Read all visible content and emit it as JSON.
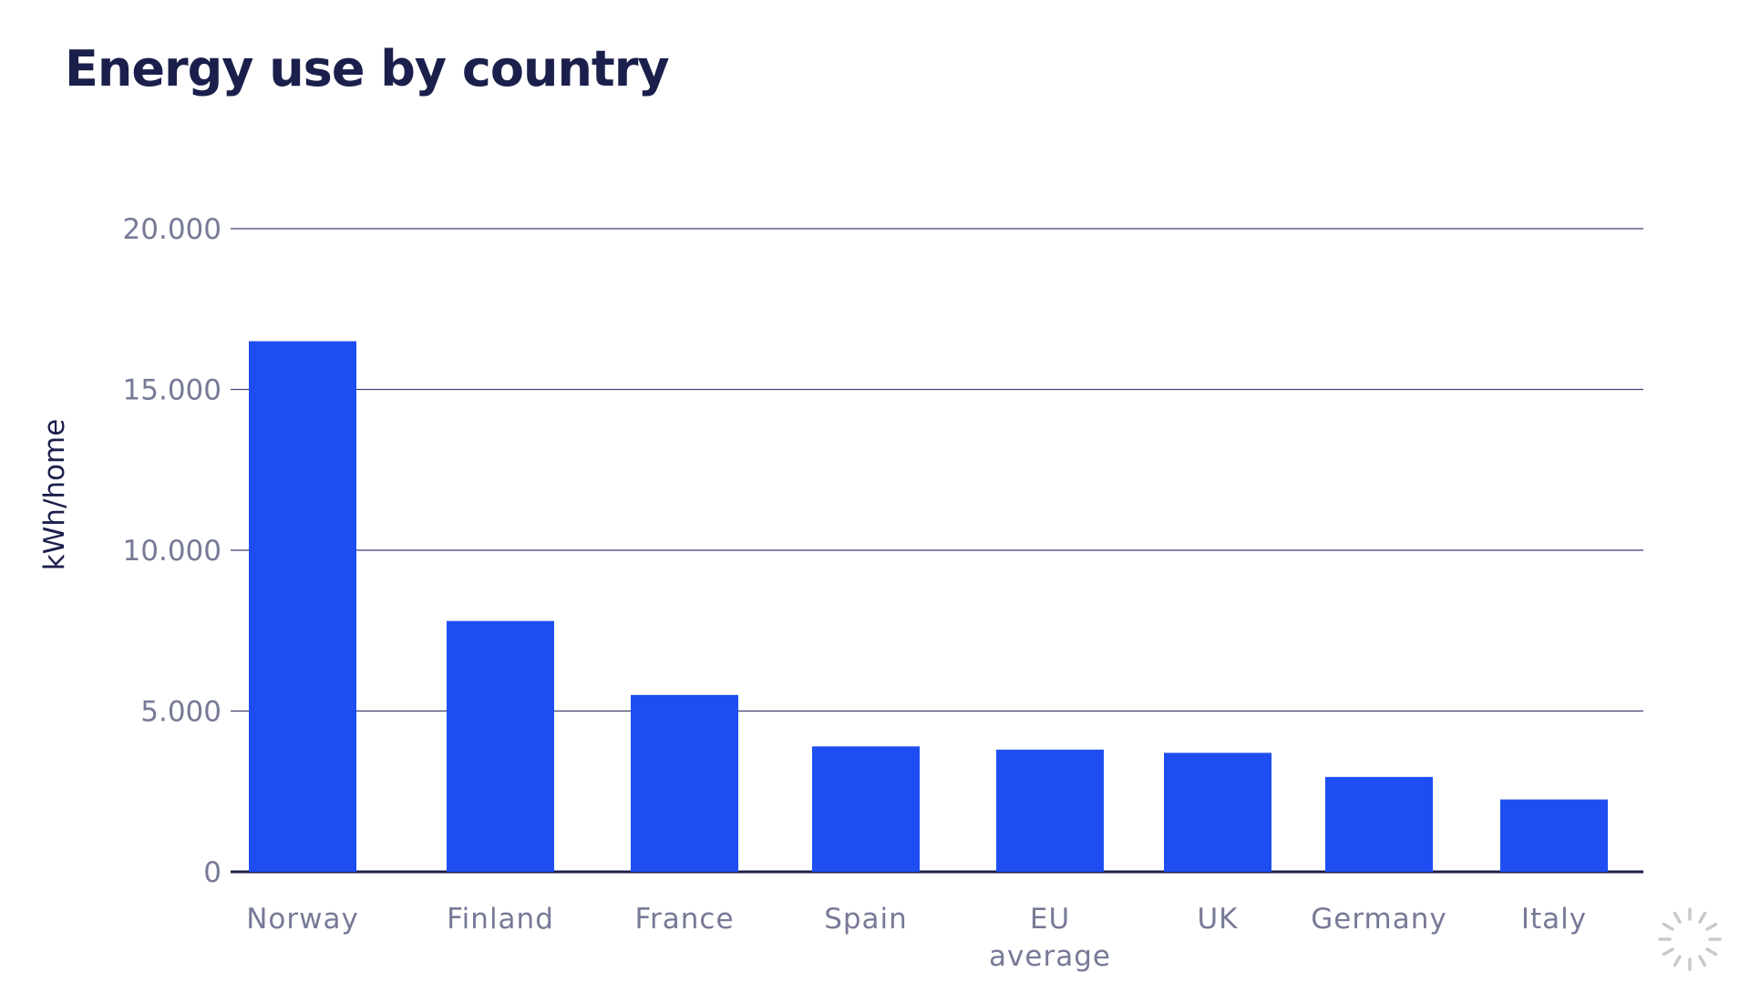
{
  "colors": {
    "bar": "#1e4ef2",
    "title": "#1b1f4b",
    "gridline": "#3d4170",
    "baseline": "#1b1f4b",
    "tick_label": "#777a96"
  },
  "chart_data": {
    "type": "bar",
    "title": "Energy use by country",
    "xlabel": "",
    "ylabel": "kWh/home",
    "categories": [
      "Norway",
      "Finland",
      "France",
      "Spain",
      "EU average",
      "UK",
      "Germany",
      "Italy"
    ],
    "values": [
      16500,
      7800,
      5500,
      3900,
      3800,
      3700,
      2950,
      2250
    ],
    "ylim": [
      0,
      20000
    ],
    "yticks": [
      0,
      5000,
      10000,
      15000,
      20000
    ],
    "ytick_labels": [
      "0",
      "5.000",
      "10.000",
      "15.000",
      "20.000"
    ],
    "grid": true,
    "legend": "none"
  },
  "icons": {
    "loading": "loading-spinner-icon"
  }
}
